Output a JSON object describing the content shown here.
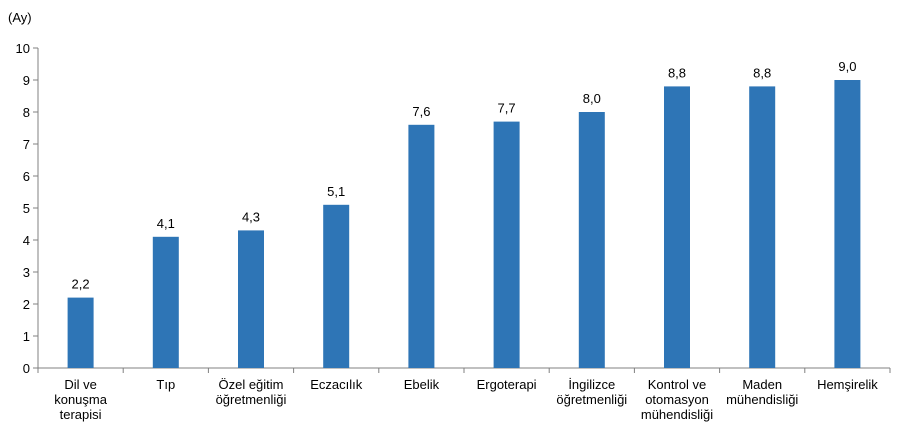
{
  "chart_data": {
    "type": "bar",
    "title": "",
    "xlabel": "",
    "ylabel": "(Ay)",
    "ylim": [
      0,
      10
    ],
    "yticks": [
      0,
      1,
      2,
      3,
      4,
      5,
      6,
      7,
      8,
      9,
      10
    ],
    "grid": false,
    "bar_color": "#2E75B6",
    "categories": [
      "Dil ve konuşma terapisi",
      "Tıp",
      "Özel eğitim öğretmenliği",
      "Eczacılık",
      "Ebelik",
      "Ergoterapi",
      "İngilizce öğretmenliği",
      "Kontrol ve otomasyon mühendisliği",
      "Maden mühendisliği",
      "Hemşirelik"
    ],
    "category_lines": [
      [
        "Dil ve",
        "konuşma",
        "terapisi"
      ],
      [
        "Tıp"
      ],
      [
        "Özel eğitim",
        "öğretmenliği"
      ],
      [
        "Eczacılık"
      ],
      [
        "Ebelik"
      ],
      [
        "Ergoterapi"
      ],
      [
        "İngilizce",
        "öğretmenliği"
      ],
      [
        "Kontrol ve",
        "otomasyon",
        "mühendisliği"
      ],
      [
        "Maden",
        "mühendisliği"
      ],
      [
        "Hemşirelik"
      ]
    ],
    "values": [
      2.2,
      4.1,
      4.3,
      5.1,
      7.6,
      7.7,
      8.0,
      8.8,
      8.8,
      9.0
    ],
    "value_labels": [
      "2,2",
      "4,1",
      "4,3",
      "5,1",
      "7,6",
      "7,7",
      "8,0",
      "8,8",
      "8,8",
      "9,0"
    ]
  }
}
